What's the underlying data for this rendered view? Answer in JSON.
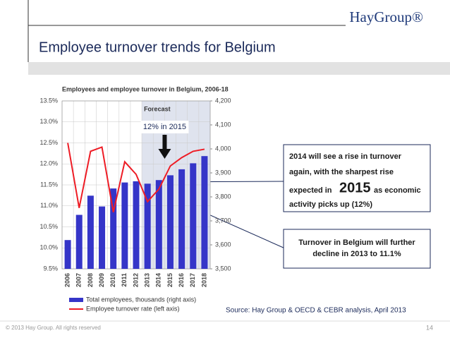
{
  "logo": "HayGroup®",
  "header": {
    "title": "Employee turnover trends for Belgium"
  },
  "chart_data": {
    "type": "combo",
    "title": "Employees and employee turnover in Belgium, 2006-18",
    "categories": [
      "2006",
      "2007",
      "2008",
      "2009",
      "2010",
      "2011",
      "2012",
      "2013",
      "2014",
      "2015",
      "2016",
      "2017",
      "2018"
    ],
    "series": [
      {
        "name": "Total employees, thousands (right axis)",
        "type": "bar",
        "axis": "y2",
        "color": "#3535c8",
        "values": [
          3620,
          3725,
          3805,
          3760,
          3835,
          3860,
          3865,
          3855,
          3870,
          3890,
          3915,
          3940,
          3970
        ]
      },
      {
        "name": "Employee turnover rate (left axis)",
        "type": "line",
        "axis": "y",
        "color": "#ee1c25",
        "values": [
          12.5,
          10.95,
          12.3,
          12.4,
          10.85,
          12.05,
          11.75,
          11.1,
          11.4,
          11.95,
          12.15,
          12.3,
          12.35
        ]
      }
    ],
    "ylim": [
      9.5,
      13.5
    ],
    "yticks": [
      {
        "value": 9.5,
        "label": "9.5%"
      },
      {
        "value": 10,
        "label": "10.0%"
      },
      {
        "value": 10.5,
        "label": "10.5%"
      },
      {
        "value": 11,
        "label": "11.0%"
      },
      {
        "value": 11.5,
        "label": "11.5%"
      },
      {
        "value": 12,
        "label": "12.0%"
      },
      {
        "value": 12.5,
        "label": "12.5%"
      },
      {
        "value": 13,
        "label": "13.0%"
      },
      {
        "value": 13.5,
        "label": "13.5%"
      }
    ],
    "y2lim": [
      3500,
      4200
    ],
    "y2ticks": [
      {
        "value": 3500,
        "label": "3,500"
      },
      {
        "value": 3600,
        "label": "3,600"
      },
      {
        "value": 3700,
        "label": "3,700"
      },
      {
        "value": 3800,
        "label": "3,800"
      },
      {
        "value": 3900,
        "label": "3,900"
      },
      {
        "value": 4000,
        "label": "4,000"
      },
      {
        "value": 4100,
        "label": "4,100"
      },
      {
        "value": 4200,
        "label": "4,200"
      }
    ],
    "grid": true,
    "forecast": {
      "label": "Forecast",
      "x_start": "2013"
    },
    "annotation": {
      "text": "12% in 2015",
      "category": "2015"
    }
  },
  "callouts": [
    {
      "lines": [
        "2014 will see a rise in turnover",
        "again, with the sharpest rise",
        "expected in",
        "2015",
        "as economic",
        "activity picks up (12%)"
      ]
    },
    {
      "lines": [
        "Turnover in Belgium will further",
        "decline in 2013 to 11.1%"
      ]
    }
  ],
  "source": "Source: Hay Group & OECD & CEBR analysis, April 2013",
  "footer": {
    "copyright": "© 2013 Hay Group. All rights reserved",
    "page": "14"
  }
}
